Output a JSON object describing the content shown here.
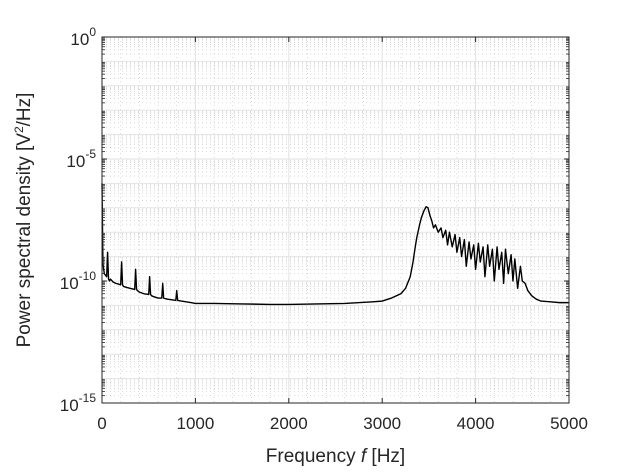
{
  "chart_data": {
    "type": "line",
    "title": "",
    "xlabel": "Frequency",
    "xlabel_symbol": "f",
    "xlabel_unit": "[Hz]",
    "ylabel_text": "Power spectral density [V",
    "ylabel_sup": "2",
    "ylabel_end": "/Hz]",
    "xlim": [
      0,
      5000
    ],
    "ylim": [
      1e-15,
      1
    ],
    "yscale": "log",
    "grid": true,
    "minor_grid": true,
    "legend": "none",
    "line_color": "#000000",
    "x_ticks": [
      0,
      1000,
      2000,
      3000,
      4000,
      5000
    ],
    "x_tick_labels": [
      "0",
      "1000",
      "2000",
      "3000",
      "4000",
      "5000"
    ],
    "y_ticks": [
      1e-15,
      1e-10,
      1e-05,
      1
    ],
    "y_tick_labels": [
      {
        "base": "10",
        "exp": "-15"
      },
      {
        "base": "10",
        "exp": "-10"
      },
      {
        "base": "10",
        "exp": "-5"
      },
      {
        "base": "10",
        "exp": "0"
      }
    ],
    "series": [
      {
        "x": [
          0,
          10,
          25,
          50,
          60,
          70,
          80,
          90,
          120,
          150,
          200,
          210,
          220,
          230,
          260,
          300,
          350,
          360,
          370,
          380,
          400,
          450,
          500,
          510,
          520,
          530,
          550,
          600,
          640,
          650,
          660,
          700,
          750,
          790,
          800,
          810,
          850,
          900,
          950,
          1000,
          1200,
          1500,
          1800,
          2000,
          2300,
          2600,
          2900,
          3000,
          3100,
          3200,
          3250,
          3300,
          3330,
          3350,
          3370,
          3400,
          3420,
          3450,
          3470,
          3490,
          3510,
          3530,
          3550,
          3570,
          3600,
          3630,
          3650,
          3680,
          3700,
          3720,
          3750,
          3780,
          3800,
          3830,
          3850,
          3880,
          3900,
          3930,
          3950,
          3980,
          4000,
          4030,
          4050,
          4080,
          4100,
          4130,
          4150,
          4180,
          4200,
          4230,
          4250,
          4280,
          4300,
          4320,
          4350,
          4380,
          4400,
          4420,
          4450,
          4480,
          4500,
          4530,
          4560,
          4600,
          4650,
          4700,
          4800,
          4900,
          5000
        ],
        "y": [
          1e-06,
          5e-10,
          2e-10,
          1.5e-10,
          1.5e-09,
          1.2e-10,
          1e-10,
          1.2e-10,
          9e-11,
          8e-11,
          7e-11,
          6e-10,
          7e-11,
          6e-11,
          5.5e-11,
          5e-11,
          4.5e-11,
          3e-10,
          4.5e-11,
          4e-11,
          3.5e-11,
          3e-11,
          2.8e-11,
          1.5e-10,
          2.8e-11,
          2.5e-11,
          2.3e-11,
          2e-11,
          2e-11,
          8e-11,
          2e-11,
          1.8e-11,
          1.7e-11,
          1.6e-11,
          4e-11,
          1.6e-11,
          1.5e-11,
          1.4e-11,
          1.3e-11,
          1.2e-11,
          1.2e-11,
          1.15e-11,
          1.1e-11,
          1.1e-11,
          1.15e-11,
          1.2e-11,
          1.4e-11,
          1.5e-11,
          2e-11,
          3e-11,
          5e-11,
          1.5e-10,
          6e-10,
          2e-09,
          6e-09,
          2e-08,
          4e-08,
          8e-08,
          1.1e-07,
          1e-07,
          5e-08,
          3e-08,
          1.5e-08,
          2e-08,
          1e-08,
          1.5e-08,
          6e-09,
          1.2e-08,
          3e-09,
          1e-08,
          2.5e-09,
          8e-09,
          1.5e-09,
          6e-09,
          1e-09,
          5e-09,
          4e-10,
          4e-09,
          8e-10,
          3e-09,
          3e-10,
          3.5e-09,
          6e-10,
          2.5e-09,
          1.5e-10,
          3e-09,
          4e-10,
          2e-09,
          1e-10,
          2.5e-09,
          3e-10,
          1.5e-09,
          8e-11,
          2e-09,
          2e-10,
          1.2e-09,
          1e-10,
          8e-10,
          5e-11,
          4e-10,
          1e-10,
          8e-11,
          4e-11,
          2.5e-11,
          1.8e-11,
          1.5e-11,
          1.4e-11,
          1.3e-11,
          1.3e-11
        ]
      }
    ]
  }
}
